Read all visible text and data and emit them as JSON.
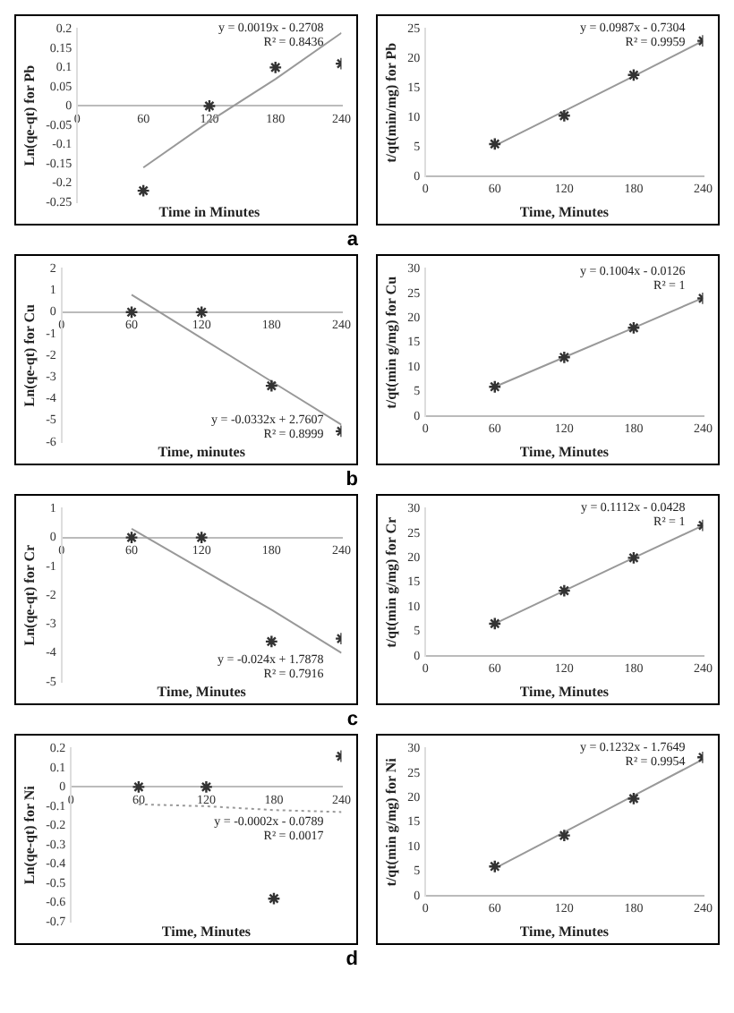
{
  "chart_data": [
    {
      "type": "scatter",
      "subtitle": "a",
      "xlabel": "Time in Minutes",
      "ylabel": "Ln(qe-qt) for Pb",
      "x": [
        60,
        120,
        180,
        240
      ],
      "xlim": [
        0,
        240
      ],
      "xticks": [
        0,
        60,
        120,
        180,
        240
      ],
      "ylim": [
        -0.25,
        0.2
      ],
      "yticks": [
        -0.25,
        -0.2,
        -0.15,
        -0.1,
        -0.05,
        0,
        0.05,
        0.1,
        0.15,
        0.2
      ],
      "series": [
        {
          "color": "#333333",
          "marker": "cross",
          "values": [
            -0.22,
            0,
            0.1,
            0.11
          ]
        },
        {
          "type": "line",
          "color": "#999999",
          "marker": "none",
          "line_style": "solid",
          "values": [
            -0.16,
            -0.04,
            0.07,
            0.19
          ]
        }
      ],
      "annotations": [
        "y = 0.0019x - 0.2708",
        "R² = 0.8436"
      ]
    },
    {
      "type": "scatter",
      "xlabel": "Time, Minutes",
      "ylabel": "t/qt(min/mg) for Pb",
      "x": [
        60,
        120,
        180,
        240
      ],
      "xlim": [
        0,
        240
      ],
      "xticks": [
        0,
        60,
        120,
        180,
        240
      ],
      "ylim": [
        0,
        25
      ],
      "yticks": [
        0,
        5,
        10,
        15,
        20,
        25
      ],
      "series": [
        {
          "color": "#333333",
          "marker": "cross",
          "values": [
            5.5,
            10.3,
            17.2,
            23
          ]
        },
        {
          "type": "line",
          "color": "#999999",
          "marker": "none",
          "line_style": "solid",
          "values": [
            5.2,
            11.1,
            17,
            23
          ]
        }
      ],
      "annotations": [
        "y = 0.0987x - 0.7304",
        "R² = 0.9959"
      ]
    },
    {
      "type": "scatter",
      "subtitle": "b",
      "xlabel": "Time, minutes",
      "ylabel": "Ln(qe-qt) for Cu",
      "x": [
        60,
        120,
        180,
        240
      ],
      "xlim": [
        0,
        240
      ],
      "xticks": [
        0,
        60,
        120,
        180,
        240
      ],
      "ylim": [
        -6,
        2
      ],
      "yticks": [
        -6,
        -5,
        -4,
        -3,
        -2,
        -1,
        0,
        1,
        2
      ],
      "series": [
        {
          "color": "#333333",
          "marker": "cross",
          "values": [
            0,
            0,
            -3.4,
            -5.5
          ]
        },
        {
          "type": "line",
          "color": "#999999",
          "marker": "none",
          "line_style": "solid",
          "values": [
            0.8,
            -1.2,
            -3.2,
            -5.2
          ]
        }
      ],
      "annotations": [
        "y = -0.0332x + 2.7607",
        "R² = 0.8999"
      ]
    },
    {
      "type": "scatter",
      "xlabel": "Time, Minutes",
      "ylabel": "t/qt(min g/mg) for Cu",
      "x": [
        60,
        120,
        180,
        240
      ],
      "xlim": [
        0,
        240
      ],
      "xticks": [
        0,
        60,
        120,
        180,
        240
      ],
      "ylim": [
        0,
        30
      ],
      "yticks": [
        0,
        5,
        10,
        15,
        20,
        25,
        30
      ],
      "series": [
        {
          "color": "#333333",
          "marker": "cross",
          "values": [
            6,
            12,
            18,
            24
          ]
        },
        {
          "type": "line",
          "color": "#999999",
          "marker": "none",
          "line_style": "solid",
          "values": [
            6,
            12,
            18,
            24.1
          ]
        }
      ],
      "annotations": [
        "y = 0.1004x - 0.0126",
        "R² = 1"
      ]
    },
    {
      "type": "scatter",
      "subtitle": "c",
      "xlabel": "Time, Minutes",
      "ylabel": "Ln(qe-qt) for Cr",
      "x": [
        60,
        120,
        180,
        240
      ],
      "xlim": [
        0,
        240
      ],
      "xticks": [
        0,
        60,
        120,
        180,
        240
      ],
      "ylim": [
        -5,
        1
      ],
      "yticks": [
        -5,
        -4,
        -3,
        -2,
        -1,
        0,
        1
      ],
      "series": [
        {
          "color": "#333333",
          "marker": "cross",
          "values": [
            0,
            0,
            -3.6,
            -3.5
          ]
        },
        {
          "type": "line",
          "color": "#999999",
          "marker": "none",
          "line_style": "solid",
          "values": [
            0.3,
            -1.1,
            -2.5,
            -4
          ]
        }
      ],
      "annotations": [
        "y = -0.024x + 1.7878",
        "R² = 0.7916"
      ]
    },
    {
      "type": "scatter",
      "xlabel": "Time, Minutes",
      "ylabel": "t/qt(min g/mg) for Cr",
      "x": [
        60,
        120,
        180,
        240
      ],
      "xlim": [
        0,
        240
      ],
      "xticks": [
        0,
        60,
        120,
        180,
        240
      ],
      "ylim": [
        0,
        30
      ],
      "yticks": [
        0,
        5,
        10,
        15,
        20,
        25,
        30
      ],
      "series": [
        {
          "color": "#333333",
          "marker": "cross",
          "values": [
            6.6,
            13.3,
            20,
            26.6
          ]
        },
        {
          "type": "line",
          "color": "#999999",
          "marker": "none",
          "line_style": "solid",
          "values": [
            6.6,
            13.3,
            20,
            26.6
          ]
        }
      ],
      "annotations": [
        "y = 0.1112x - 0.0428",
        "R² = 1"
      ]
    },
    {
      "type": "scatter",
      "subtitle": "d",
      "xlabel": "Time, Minutes",
      "ylabel": "Ln(qe-qt) for Ni",
      "x": [
        60,
        120,
        180,
        240
      ],
      "xlim": [
        0,
        240
      ],
      "xticks": [
        0,
        60,
        120,
        180,
        240
      ],
      "ylim": [
        -0.7,
        0.2
      ],
      "yticks": [
        -0.7,
        -0.6,
        -0.5,
        -0.4,
        -0.3,
        -0.2,
        -0.1,
        0,
        0.1,
        0.2
      ],
      "series": [
        {
          "color": "#333333",
          "marker": "cross",
          "values": [
            0,
            0,
            -0.58,
            0.16
          ]
        },
        {
          "type": "line",
          "color": "#999999",
          "marker": "none",
          "line_style": "dotted",
          "values": [
            -0.09,
            -0.1,
            -0.12,
            -0.13
          ]
        }
      ],
      "annotations": [
        "y = -0.0002x - 0.0789",
        "R² = 0.0017"
      ]
    },
    {
      "type": "scatter",
      "xlabel": "Time, Minutes",
      "ylabel": "t/qt(min g/mg) for Ni",
      "x": [
        60,
        120,
        180,
        240
      ],
      "xlim": [
        0,
        240
      ],
      "xticks": [
        0,
        60,
        120,
        180,
        240
      ],
      "ylim": [
        0,
        30
      ],
      "yticks": [
        0,
        5,
        10,
        15,
        20,
        25,
        30
      ],
      "series": [
        {
          "color": "#333333",
          "marker": "cross",
          "values": [
            6,
            12.3,
            19.8,
            28.2
          ]
        },
        {
          "type": "line",
          "color": "#999999",
          "marker": "none",
          "line_style": "solid",
          "values": [
            5.6,
            13,
            20.4,
            27.8
          ]
        }
      ],
      "annotations": [
        "y = 0.1232x - 1.7649",
        "R² = 0.9954"
      ]
    }
  ]
}
